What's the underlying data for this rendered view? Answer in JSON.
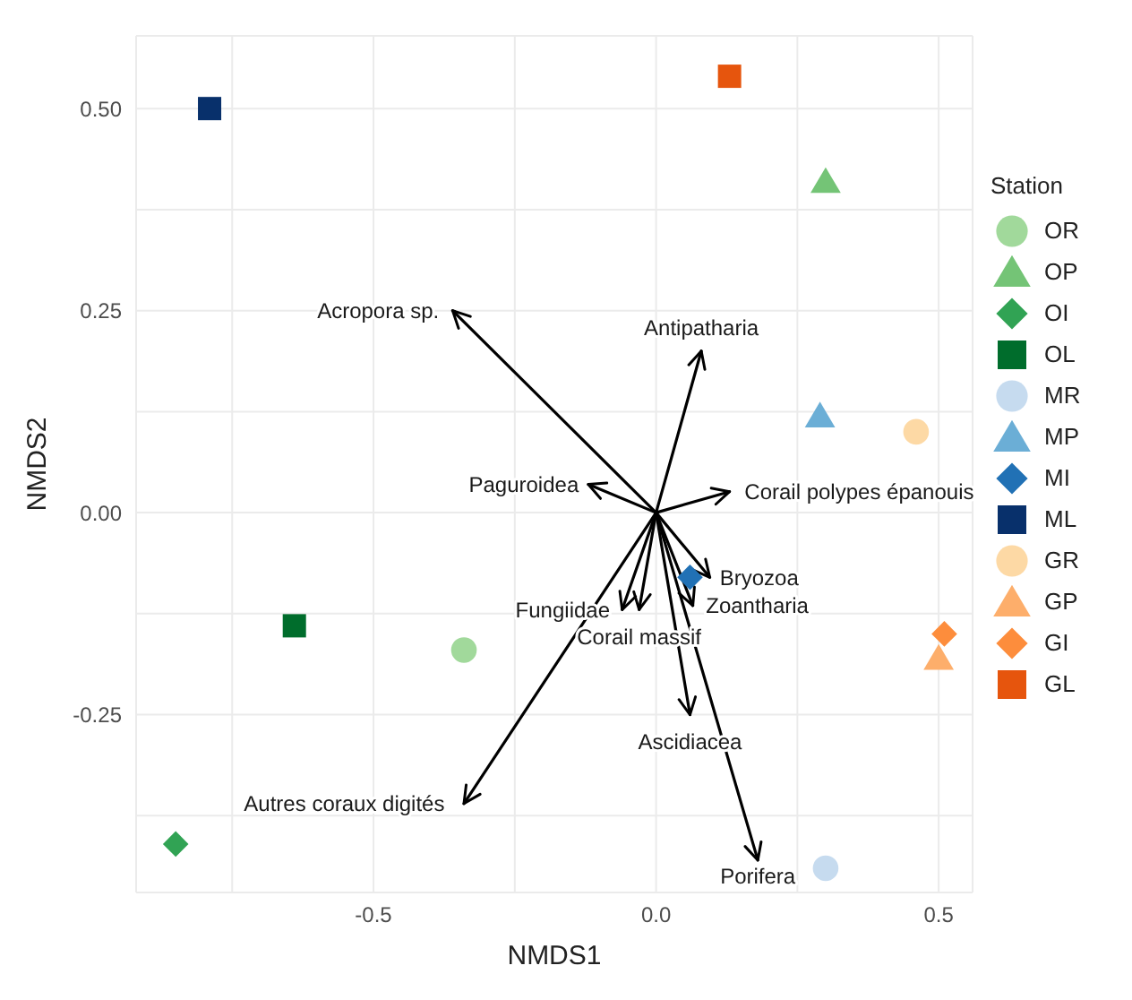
{
  "chart_data": {
    "type": "scatter",
    "xlabel": "NMDS1",
    "ylabel": "NMDS2",
    "legend_title": "Station",
    "legend": "right",
    "grid": true,
    "xlim": [
      -0.92,
      0.56
    ],
    "ylim": [
      -0.47,
      0.59
    ],
    "xticks": [
      {
        "value": -0.75,
        "label": null
      },
      {
        "value": -0.5,
        "label": "-0.5"
      },
      {
        "value": -0.25,
        "label": null
      },
      {
        "value": 0,
        "label": "0.0"
      },
      {
        "value": 0.25,
        "label": null
      },
      {
        "value": 0.5,
        "label": "0.5"
      }
    ],
    "yticks": [
      {
        "value": -0.375,
        "label": null
      },
      {
        "value": -0.25,
        "label": "-0.25"
      },
      {
        "value": -0.125,
        "label": null
      },
      {
        "value": 0,
        "label": "0.00"
      },
      {
        "value": 0.125,
        "label": null
      },
      {
        "value": 0.25,
        "label": "0.25"
      },
      {
        "value": 0.375,
        "label": null
      },
      {
        "value": 0.5,
        "label": "0.50"
      }
    ],
    "series": [
      {
        "name": "OR",
        "marker": "circle",
        "color": "#a1d99b",
        "x": [
          -0.34
        ],
        "values": [
          -0.17
        ]
      },
      {
        "name": "OP",
        "marker": "triangle",
        "color": "#74c476",
        "x": [
          0.3
        ],
        "values": [
          0.41
        ]
      },
      {
        "name": "OI",
        "marker": "diamond",
        "color": "#31a354",
        "x": [
          -0.85
        ],
        "values": [
          -0.41
        ]
      },
      {
        "name": "OL",
        "marker": "square",
        "color": "#006d2c",
        "x": [
          -0.64
        ],
        "values": [
          -0.14
        ]
      },
      {
        "name": "MR",
        "marker": "circle",
        "color": "#c6dbef",
        "x": [
          0.3
        ],
        "values": [
          -0.44
        ]
      },
      {
        "name": "MP",
        "marker": "triangle",
        "color": "#6baed6",
        "x": [
          0.29
        ],
        "values": [
          0.12
        ]
      },
      {
        "name": "MI",
        "marker": "diamond",
        "color": "#2171b5",
        "x": [
          0.06
        ],
        "values": [
          -0.08
        ]
      },
      {
        "name": "ML",
        "marker": "square",
        "color": "#08306b",
        "x": [
          -0.79
        ],
        "values": [
          0.5
        ]
      },
      {
        "name": "GR",
        "marker": "circle",
        "color": "#fdd9a5",
        "x": [
          0.46
        ],
        "values": [
          0.1
        ]
      },
      {
        "name": "GP",
        "marker": "triangle",
        "color": "#fdae6b",
        "x": [
          0.5
        ],
        "values": [
          -0.18
        ]
      },
      {
        "name": "GI",
        "marker": "diamond",
        "color": "#fd8d3c",
        "x": [
          0.51
        ],
        "values": [
          -0.15
        ]
      },
      {
        "name": "GL",
        "marker": "square",
        "color": "#e6550d",
        "x": [
          0.13
        ],
        "values": [
          0.54
        ]
      },
      {
        "name": "Acropora sp.",
        "type": "line",
        "color": "#000000",
        "x": [
          0,
          -0.36
        ],
        "values": [
          0,
          0.25
        ]
      },
      {
        "name": "Antipatharia",
        "type": "line",
        "color": "#000000",
        "x": [
          0,
          0.08
        ],
        "values": [
          0,
          0.2
        ]
      },
      {
        "name": "Paguroidea",
        "type": "line",
        "color": "#000000",
        "x": [
          0,
          -0.12
        ],
        "values": [
          0,
          0.035
        ]
      },
      {
        "name": "Corail polypes épanouis",
        "type": "line",
        "color": "#000000",
        "x": [
          0,
          0.13
        ],
        "values": [
          0,
          0.026
        ]
      },
      {
        "name": "Bryozoa",
        "type": "line",
        "color": "#000000",
        "x": [
          0,
          0.095
        ],
        "values": [
          0,
          -0.08
        ]
      },
      {
        "name": "Zoantharia",
        "type": "line",
        "color": "#000000",
        "x": [
          0,
          0.065
        ],
        "values": [
          0,
          -0.115
        ]
      },
      {
        "name": "Fungiidae",
        "type": "line",
        "color": "#000000",
        "x": [
          0,
          -0.06
        ],
        "values": [
          0,
          -0.12
        ]
      },
      {
        "name": "Corail massif",
        "type": "line",
        "color": "#000000",
        "x": [
          0,
          -0.03
        ],
        "values": [
          0,
          -0.12
        ]
      },
      {
        "name": "Ascidiacea",
        "type": "line",
        "color": "#000000",
        "x": [
          0,
          0.06
        ],
        "values": [
          0,
          -0.25
        ]
      },
      {
        "name": "Porifera",
        "type": "line",
        "color": "#000000",
        "x": [
          0,
          0.18
        ],
        "values": [
          0,
          -0.43
        ]
      },
      {
        "name": "Autres coraux digités",
        "type": "line",
        "color": "#000000",
        "x": [
          0,
          -0.34
        ],
        "values": [
          0,
          -0.36
        ]
      }
    ]
  }
}
